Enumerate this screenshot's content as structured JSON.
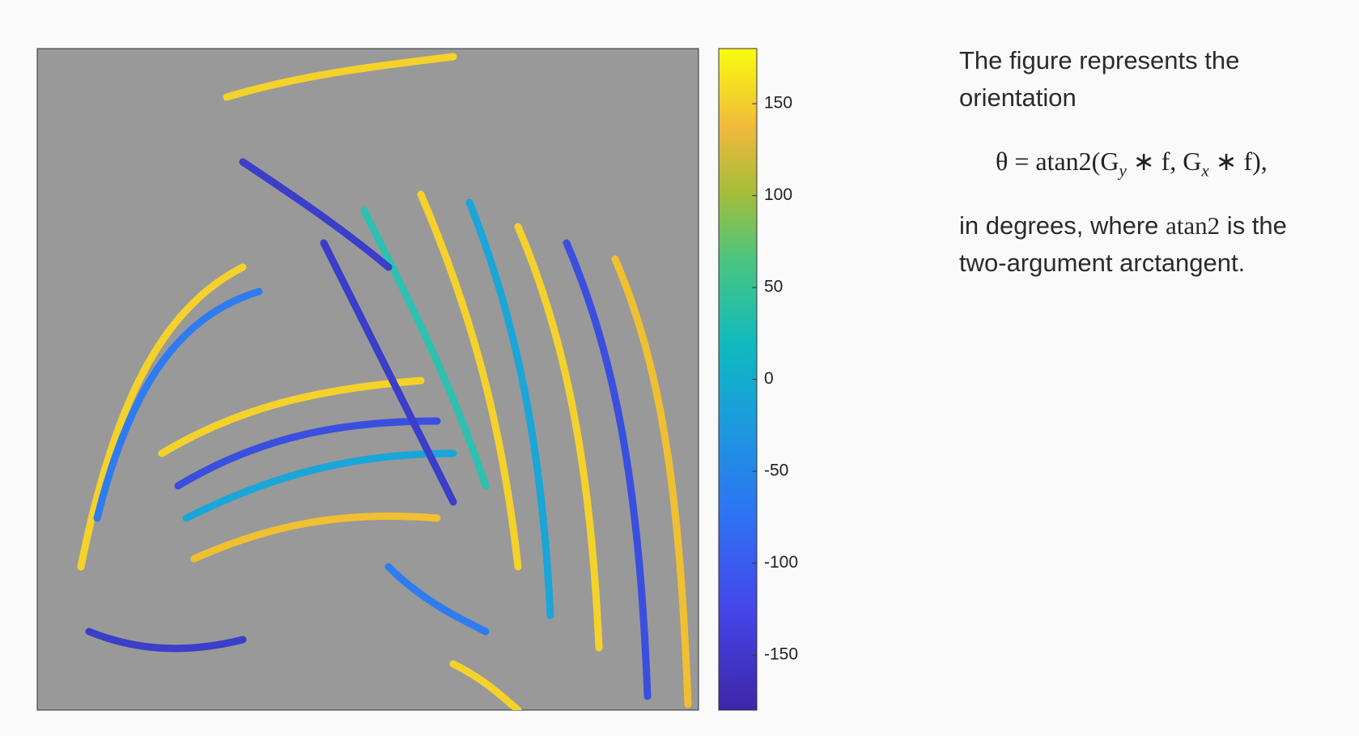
{
  "figure": {
    "colorbar": {
      "lim": [
        -180,
        180
      ],
      "ticks": [
        -150,
        -100,
        -50,
        0,
        50,
        100,
        150
      ]
    }
  },
  "text": {
    "intro": "The figure represents the orientation",
    "equation": [
      "θ = atan2(G",
      "y",
      " ∗ f, G",
      "x",
      " ∗ f),"
    ],
    "explanation": [
      "in degrees, where ",
      "atan2",
      " is the two-argument arctangent."
    ]
  }
}
